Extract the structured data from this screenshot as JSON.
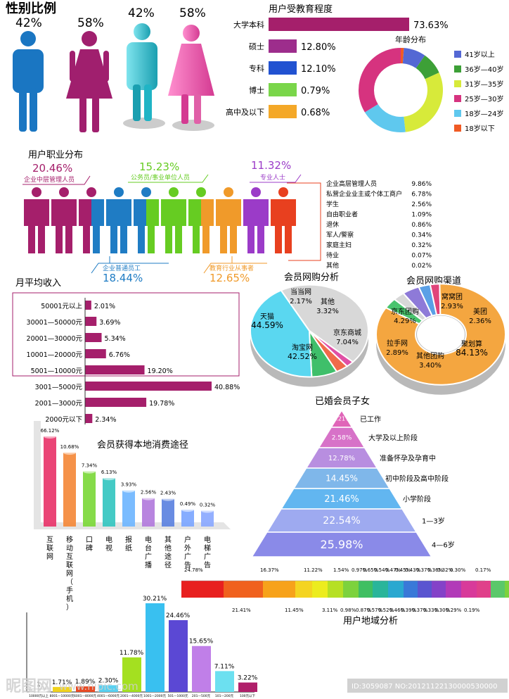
{
  "gender": {
    "title": "性别比例",
    "left_pcts": [
      "42%",
      "58%"
    ],
    "right_pcts": [
      "42%",
      "58%"
    ],
    "male_color": "#1a76c2",
    "female_color": "#a01f6e"
  },
  "education": {
    "title": "用户受教育程度",
    "rows": [
      {
        "label": "大学本科",
        "value": "73.63%",
        "color": "#a51f6b"
      },
      {
        "label": "硕士",
        "value": "12.80%",
        "color": "#9d2d8c"
      },
      {
        "label": "专科",
        "value": "12.10%",
        "color": "#2152d1"
      },
      {
        "label": "博士",
        "value": "0.79%",
        "color": "#7ad64a"
      },
      {
        "label": "高中及以下",
        "value": "0.68%",
        "color": "#f4a828"
      }
    ]
  },
  "age": {
    "title": "年龄分布",
    "legend": [
      {
        "label": "41岁以上",
        "color": "#5468d4"
      },
      {
        "label": "36岁—40岁",
        "color": "#3da037"
      },
      {
        "label": "31岁—35岁",
        "color": "#d7ea3a"
      },
      {
        "label": "25岁—30岁",
        "color": "#d6337f"
      },
      {
        "label": "18岁—24岁",
        "color": "#5fc8ee"
      },
      {
        "label": "18岁以下",
        "color": "#f05a24"
      }
    ]
  },
  "occupation": {
    "title": "用户职业分布",
    "callouts": [
      {
        "pct": "20.46%",
        "label": "企业中层管理人员",
        "color": "#a51f6b"
      },
      {
        "pct": "15.23%",
        "label": "公务员/事业单位人员",
        "color": "#66cc22"
      },
      {
        "pct": "11.32%",
        "label": "专业人士",
        "color": "#9b3bc8"
      },
      {
        "pct": "18.44%",
        "label": "企业普通员工",
        "color": "#1f7cc4"
      },
      {
        "pct": "12.65%",
        "label": "教育行业从事者",
        "color": "#f09a2a"
      }
    ],
    "list": [
      {
        "label": "企业高层管理人员",
        "value": "9.86%"
      },
      {
        "label": "私营企业业主或个体工商户",
        "value": "6.78%"
      },
      {
        "label": "学生",
        "value": "2.56%"
      },
      {
        "label": "自由职业者",
        "value": "1.09%"
      },
      {
        "label": "退休",
        "value": "0.86%"
      },
      {
        "label": "军人/警察",
        "value": "0.34%"
      },
      {
        "label": "家庭主妇",
        "value": "0.32%"
      },
      {
        "label": "待业",
        "value": "0.07%"
      },
      {
        "label": "其他",
        "value": "0.02%"
      }
    ]
  },
  "chart_data": [
    {
      "type": "bar",
      "title": "月平均收入",
      "categories": [
        "50001元以上",
        "30001—50000元",
        "20001—30000元",
        "10001—20000元",
        "5001—10000元",
        "3001—5000元",
        "2001—3000元",
        "2000元以下"
      ],
      "values": [
        2.01,
        3.69,
        5.34,
        6.76,
        19.2,
        40.88,
        19.78,
        2.34
      ],
      "labels": [
        "2.01%",
        "3.69%",
        "5.34%",
        "6.76%",
        "19.20%",
        "40.88%",
        "19.78%",
        "2.34%"
      ],
      "color": "#a51f6b"
    },
    {
      "type": "pie",
      "title": "会员网购分析",
      "slices": [
        {
          "name": "天猫",
          "value": 44.59,
          "label": "44.59%",
          "color": "#d8d8d8"
        },
        {
          "name": "当当网",
          "value": 2.17,
          "label": "2.17%",
          "color": "#e04fa5"
        },
        {
          "name": "其他",
          "value": 3.32,
          "label": "3.32%",
          "color": "#f06a4a"
        },
        {
          "name": "京东商城",
          "value": 7.04,
          "label": "7.04%",
          "color": "#3fbf6a"
        },
        {
          "name": "淘宝网",
          "value": 42.52,
          "label": "42.52%",
          "color": "#5ad7f0"
        }
      ]
    },
    {
      "type": "pie",
      "title": "会员网购渠道",
      "slices": [
        {
          "name": "窝窝团",
          "value": 2.93,
          "label": "2.93%",
          "color": "#5aa0e6"
        },
        {
          "name": "美团",
          "value": 2.36,
          "label": "2.36%",
          "color": "#e0447a"
        },
        {
          "name": "聚划算",
          "value": 84.13,
          "label": "84.13%",
          "color": "#f4a640"
        },
        {
          "name": "其他团购",
          "value": 3.4,
          "label": "3.40%",
          "color": "#49c46e"
        },
        {
          "name": "拉手网",
          "value": 2.89,
          "label": "2.89%",
          "color": "#d8d8d8"
        },
        {
          "name": "京东团购",
          "value": 4.29,
          "label": "4.29%",
          "color": "#8e7ad8"
        }
      ]
    },
    {
      "type": "bar",
      "title": "会员获得本地消费途径",
      "categories": [
        "互联网",
        "移动互联网（手机）",
        "口碑",
        "电视",
        "报纸",
        "电台广播",
        "其他途径",
        "户外广告",
        "电梯广告"
      ],
      "values": [
        66.12,
        10.68,
        7.34,
        6.13,
        3.93,
        2.56,
        2.43,
        0.49,
        0.32
      ],
      "labels": [
        "66.12%",
        "10.68%",
        "7.34%",
        "6.13%",
        "3.93%",
        "2.56%",
        "2.43%",
        "0.49%",
        "0.32%"
      ],
      "colors": [
        "#e8356a",
        "#f4893a",
        "#7cd83a",
        "#34c6c0",
        "#6fb6ff",
        "#b27bdc",
        "#5c82e0",
        "#7ca6ff",
        "#8aa8ff"
      ]
    },
    {
      "type": "bar",
      "title": "已婚会员子女",
      "orientation": "pyramid",
      "categories": [
        "已工作",
        "大学及以上阶段",
        "准备怀孕及孕育中",
        "初中阶段及高中阶段",
        "小学阶段",
        "1—3岁",
        "4—6岁"
      ],
      "values": [
        0.21,
        2.58,
        12.78,
        14.45,
        21.46,
        22.54,
        25.98
      ],
      "labels": [
        "0.21%",
        "2.58%",
        "12.78%",
        "14.45%",
        "21.46%",
        "22.54%",
        "25.98%"
      ],
      "colors": [
        "#e065b8",
        "#d772c8",
        "#b88ee0",
        "#7fb7ea",
        "#62b6f0",
        "#9eaaf0",
        "#8a8ae8"
      ]
    },
    {
      "type": "bar",
      "title": "用户地域分析",
      "top_labels": [
        "24.78%",
        "16.37%",
        "11.22%",
        "1.54%",
        "0.97%",
        "0.65%",
        "0.54%",
        "0.47%",
        "0.45%",
        "0.43%",
        "0.37%",
        "0.36%",
        "0.32%",
        "0.30%",
        "0.17%"
      ],
      "bottom_labels": [
        "21.41%",
        "11.45%",
        "3.11%",
        "0.98%",
        "0.87%",
        "0.57%",
        "0.52%",
        "0.46%",
        "0.39%",
        "0.37%",
        "0.33%",
        "0.30%",
        "0.29%",
        "0.19%"
      ],
      "segment_colors": [
        "#e8201f",
        "#f0611e",
        "#f7a21a",
        "#f4d421",
        "#ecec1e",
        "#b6e024",
        "#7cd23d",
        "#3fbf62",
        "#29b59a",
        "#2aa8d0",
        "#3979d8",
        "#5a55d0",
        "#8442c8",
        "#b23ab8",
        "#d83a9a",
        "#e0408a",
        "#5bc86a",
        "#7dd23d",
        "#aee04a",
        "#cfe84e",
        "#e0ef7c",
        "#9fd2e6"
      ]
    },
    {
      "type": "bar",
      "title": "",
      "categories": [
        "10000元以上",
        "8001—10000元",
        "6001—8000元",
        "4001—6000元",
        "2001—4000元",
        "1001—2000元",
        "501—1000元",
        "201—500元",
        "101—200元",
        "100元以下"
      ],
      "values": [
        1,
        1.71,
        1.89,
        2.3,
        11.78,
        30.21,
        24.46,
        15.65,
        7.11,
        3.22
      ],
      "labels": [
        "1",
        "1.71%",
        "1.89%",
        "2.30%",
        "11.78%",
        "30.21%",
        "24.46%",
        "15.65%",
        "7.11%",
        "3.22%"
      ],
      "colors": [
        "#ffffff",
        "#f0d21e",
        "#e84a24",
        "#5ad0f0",
        "#a4e020",
        "#39c0f0",
        "#5b48d4",
        "#c07fe8",
        "#6ce0f0",
        "#b01f6a"
      ]
    }
  ],
  "watermark": {
    "logo": "昵图网",
    "url": "www.nipic.com",
    "id": "ID:3059087 NO:20121122130000530000"
  }
}
